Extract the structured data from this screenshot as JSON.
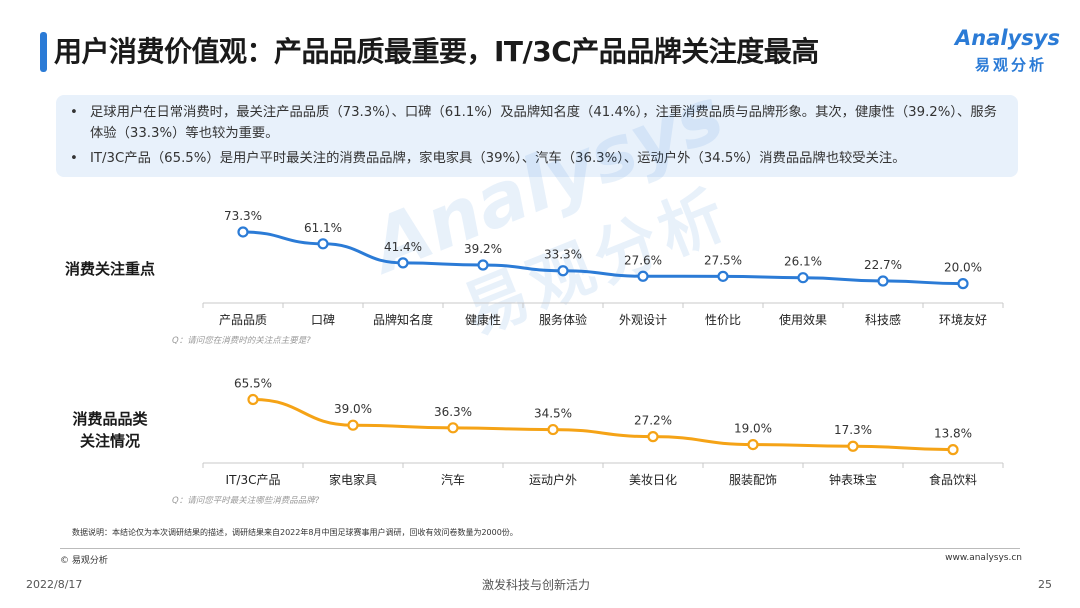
{
  "header": {
    "title": "用户消费价值观：产品品质最重要，IT/3C产品品牌关注度最高",
    "logo_en": "Analysys",
    "logo_cn": "易观分析"
  },
  "summary": {
    "bullets": [
      "足球用户在日常消费时，最关注产品品质（73.3%）、口碑（61.1%）及品牌知名度（41.4%），注重消费品质与品牌形象。其次，健康性（39.2%）、服务体验（33.3%）等也较为重要。",
      "IT/3C产品（65.5%）是用户平时最关注的消费品品牌，家电家具（39%）、汽车（36.3%）、运动户外（34.5%）消费品品牌也较受关注。"
    ]
  },
  "colors": {
    "accent": "#2b7bd6",
    "series_top": "#2b7bd6",
    "series_bottom": "#f5a316",
    "summary_bg": "#e8f1fb"
  },
  "chart_data": [
    {
      "type": "line",
      "row_label": "消费关注重点",
      "categories": [
        "产品品质",
        "口碑",
        "品牌知名度",
        "健康性",
        "服务体验",
        "外观设计",
        "性价比",
        "使用效果",
        "科技感",
        "环境友好"
      ],
      "values": [
        73.3,
        61.1,
        41.4,
        39.2,
        33.3,
        27.6,
        27.5,
        26.1,
        22.7,
        20.0
      ],
      "labels": [
        "73.3%",
        "61.1%",
        "41.4%",
        "39.2%",
        "33.3%",
        "27.6%",
        "27.5%",
        "26.1%",
        "22.7%",
        "20.0%"
      ],
      "ylim": [
        0,
        100
      ],
      "grid": false,
      "question": "Q：请问您在消费时的关注点主要是?"
    },
    {
      "type": "line",
      "row_label": "消费品品类关注情况",
      "categories": [
        "IT/3C产品",
        "家电家具",
        "汽车",
        "运动户外",
        "美妆日化",
        "服装配饰",
        "钟表珠宝",
        "食品饮料"
      ],
      "values": [
        65.5,
        39.0,
        36.3,
        34.5,
        27.2,
        19.0,
        17.3,
        13.8
      ],
      "labels": [
        "65.5%",
        "39.0%",
        "36.3%",
        "34.5%",
        "27.2%",
        "19.0%",
        "17.3%",
        "13.8%"
      ],
      "ylim": [
        0,
        100
      ],
      "grid": false,
      "question": "Q：请问您平时最关注哪些消费品品牌?"
    }
  ],
  "row_labels": {
    "top": "消费关注重点",
    "bottom_line1": "消费品品类",
    "bottom_line2": "关注情况"
  },
  "footer": {
    "note": "数据说明：本结论仅为本次调研结果的描述，调研结果来自2022年8月中国足球赛事用户调研，回收有效问卷数量为2000份。",
    "copyright": "© 易观分析",
    "website": "www.analysys.cn",
    "date": "2022/8/17",
    "slogan": "激发科技与创新活力",
    "page": "25"
  },
  "watermark": {
    "en": "Analysys",
    "cn": "易观分析"
  }
}
